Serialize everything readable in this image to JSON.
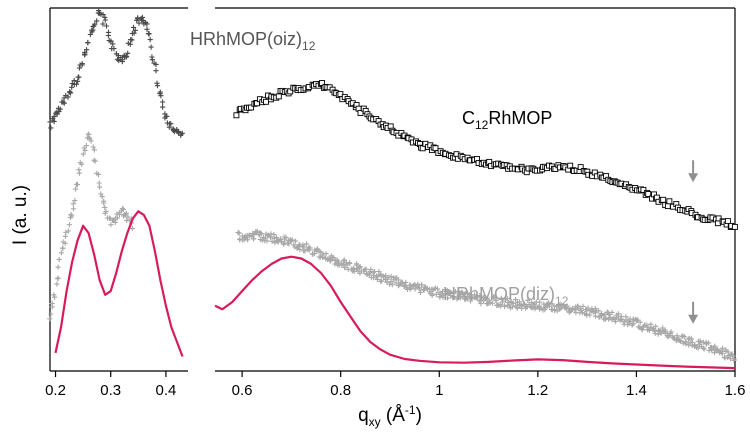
{
  "chart_data": {
    "type": "scatter",
    "xlabel": "q",
    "xlabel_sub": "xy",
    "xlabel_unit_a": " (Å",
    "xlabel_unit_sup": "-1",
    "xlabel_unit_b": ")",
    "ylabel": "I (a. u.)",
    "x_axis_break": [
      0.44,
      0.545
    ],
    "panels": [
      {
        "xlim": [
          0.19,
          0.44
        ],
        "ticks": [
          0.2,
          0.3,
          0.4
        ],
        "tick_labels": [
          "0.2",
          "0.3",
          "0.4"
        ]
      },
      {
        "xlim": [
          0.545,
          1.6
        ],
        "ticks": [
          0.6,
          0.8,
          1.0,
          1.2,
          1.4,
          1.6
        ],
        "tick_labels": [
          "0.6",
          "0.8",
          "1",
          "1.2",
          "1.4",
          "1.6"
        ]
      }
    ],
    "ylim": [
      0,
      100
    ],
    "grid": false,
    "series": [
      {
        "name": "HRhMOP(oiz)",
        "name_sub": "12",
        "marker": "plus",
        "color": "#4a4a4a",
        "x": [
          0.19,
          0.2,
          0.21,
          0.22,
          0.23,
          0.24,
          0.25,
          0.26,
          0.27,
          0.28,
          0.29,
          0.3,
          0.31,
          0.32,
          0.33,
          0.34,
          0.35,
          0.36,
          0.37,
          0.38,
          0.39,
          0.4,
          0.41,
          0.42,
          0.43
        ],
        "y": [
          68,
          70,
          73,
          75,
          78,
          81,
          86,
          91,
          96,
          98.5,
          96,
          91,
          87,
          86,
          88,
          93,
          97,
          97,
          92,
          84,
          76,
          70,
          67,
          66,
          65
        ]
      },
      {
        "name": "C",
        "name_sub": "12",
        "name_rest": "RhMOP",
        "marker": "square",
        "color": "#000000",
        "x": [
          0.59,
          0.62,
          0.65,
          0.68,
          0.71,
          0.74,
          0.76,
          0.78,
          0.8,
          0.84,
          0.88,
          0.92,
          0.96,
          1.0,
          1.05,
          1.1,
          1.15,
          1.2,
          1.25,
          1.3,
          1.35,
          1.4,
          1.45,
          1.5,
          1.55,
          1.6
        ],
        "y": [
          71,
          73,
          75,
          76.5,
          77.5,
          78.5,
          78.8,
          78,
          76,
          72,
          68.5,
          65,
          62.5,
          60.5,
          58.5,
          57,
          55.5,
          55.5,
          56.5,
          55,
          52.5,
          50,
          47,
          44,
          42,
          40
        ]
      },
      {
        "name": "HRhMOP(diz)",
        "name_sub": "12",
        "marker": "plus",
        "color": "#a8a8a8",
        "x": [
          0.19,
          0.2,
          0.21,
          0.22,
          0.23,
          0.24,
          0.25,
          0.26,
          0.27,
          0.28,
          0.29,
          0.3,
          0.31,
          0.32,
          0.33,
          0.34,
          0.59,
          0.62,
          0.65,
          0.68,
          0.71,
          0.74,
          0.78,
          0.82,
          0.86,
          0.9,
          0.95,
          1.0,
          1.05,
          1.1,
          1.15,
          1.2,
          1.25,
          1.3,
          1.35,
          1.4,
          1.45,
          1.5,
          1.55,
          1.6
        ],
        "y": [
          15,
          22,
          32,
          38,
          44,
          52,
          60,
          65,
          60,
          50,
          44,
          40,
          42,
          44,
          42,
          40,
          37,
          37.5,
          37,
          36,
          35,
          33.5,
          31,
          29,
          27,
          25,
          23,
          21.5,
          20.5,
          19.5,
          18.5,
          18,
          17.5,
          16.5,
          15,
          13,
          11,
          8.5,
          6.5,
          3.5
        ]
      },
      {
        "marker": "line",
        "color": "#d81b5a",
        "x": [
          0.2,
          0.21,
          0.22,
          0.23,
          0.24,
          0.25,
          0.26,
          0.27,
          0.28,
          0.29,
          0.3,
          0.31,
          0.32,
          0.33,
          0.34,
          0.35,
          0.36,
          0.37,
          0.38,
          0.39,
          0.4,
          0.41,
          0.42,
          0.43,
          0.545,
          0.56,
          0.58,
          0.6,
          0.62,
          0.64,
          0.66,
          0.68,
          0.7,
          0.72,
          0.74,
          0.76,
          0.78,
          0.8,
          0.82,
          0.84,
          0.86,
          0.88,
          0.9,
          0.93,
          0.96,
          1.0,
          1.05,
          1.1,
          1.15,
          1.2,
          1.25,
          1.3,
          1.35,
          1.4,
          1.45,
          1.5,
          1.55,
          1.6
        ],
        "y": [
          5,
          12,
          22,
          30,
          36,
          40,
          38,
          32,
          25,
          21,
          22,
          27,
          33,
          38,
          42,
          44,
          43,
          40,
          33,
          25,
          18,
          12,
          8,
          4,
          18,
          17,
          19,
          22,
          25,
          27.5,
          29.5,
          31,
          31.5,
          31,
          29.5,
          27,
          23.5,
          19,
          15,
          11,
          8,
          6,
          4.5,
          3.3,
          2.8,
          2.4,
          2.3,
          2.5,
          2.9,
          3.2,
          3.0,
          2.5,
          2.1,
          1.8,
          1.5,
          1.2,
          1.0,
          0.8
        ]
      }
    ],
    "annotations": [
      {
        "type": "arrow-down",
        "x": 1.515,
        "y": 52,
        "color": "#909090"
      },
      {
        "type": "arrow-down",
        "x": 1.515,
        "y": 13,
        "color": "#909090"
      }
    ]
  }
}
